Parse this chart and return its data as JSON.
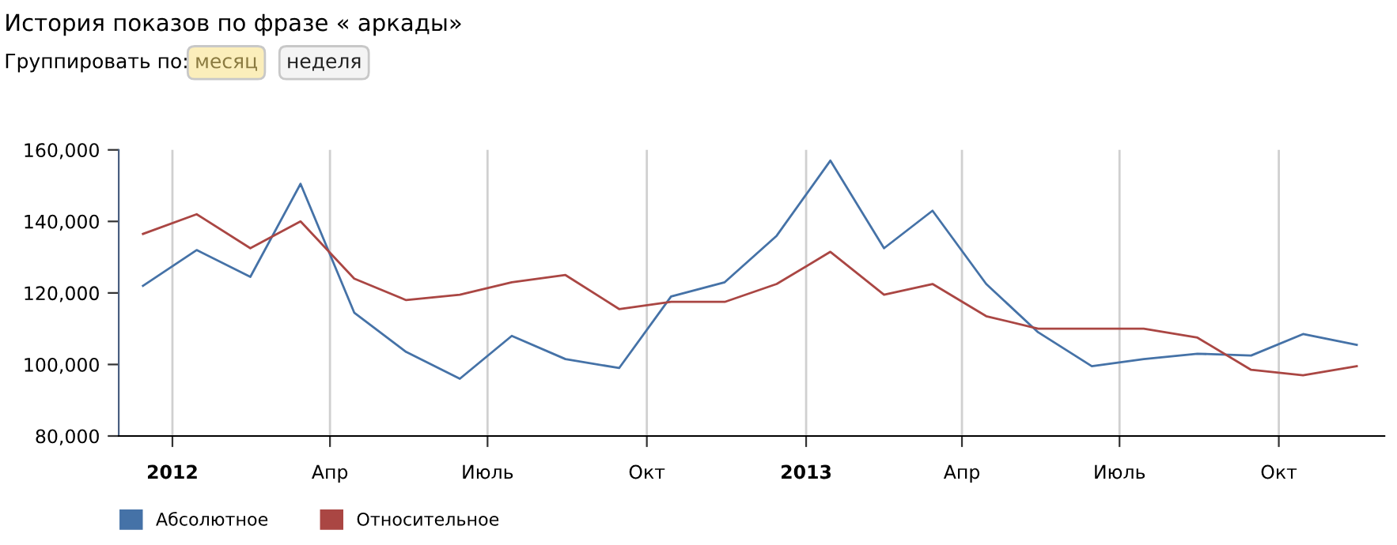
{
  "chart_data": {
    "type": "line",
    "title": "История показов по фразе « аркады»",
    "annotations": [
      "Группировать по:",
      "месяц",
      "неделя"
    ],
    "x": [
      "2011-12-15",
      "2012-01-15",
      "2012-02-15",
      "2012-03-15",
      "2012-04-15",
      "2012-05-15",
      "2012-06-15",
      "2012-07-15",
      "2012-08-15",
      "2012-09-15",
      "2012-10-15",
      "2012-11-15",
      "2012-12-15",
      "2013-01-15",
      "2013-02-15",
      "2013-03-15",
      "2013-04-15",
      "2013-05-15",
      "2013-06-15",
      "2013-07-15",
      "2013-08-15",
      "2013-09-15",
      "2013-10-15",
      "2013-11-15"
    ],
    "series": [
      {
        "name": "Абсолютное",
        "color": "#4572a7",
        "values": [
          122000,
          132000,
          124500,
          150500,
          114500,
          103500,
          96000,
          108000,
          101500,
          99000,
          119000,
          123000,
          136000,
          157000,
          132500,
          143000,
          122500,
          109000,
          99500,
          101500,
          103000,
          102500,
          108500,
          105500
        ]
      },
      {
        "name": "Относительное",
        "color": "#aa4643",
        "values": [
          136500,
          142000,
          132500,
          140000,
          124000,
          118000,
          119500,
          123000,
          125000,
          115500,
          117500,
          117500,
          122500,
          131500,
          119500,
          122500,
          113500,
          110000,
          110000,
          110000,
          107500,
          98500,
          97000,
          99500
        ]
      }
    ],
    "xlim": [
      "2011-12-01",
      "2013-12-01"
    ],
    "xticks": [
      {
        "value": "2012-01-01",
        "label": "2012"
      },
      {
        "value": "2012-04-01",
        "label": "Апр"
      },
      {
        "value": "2012-07-01",
        "label": "Июль"
      },
      {
        "value": "2012-10-01",
        "label": "Окт"
      },
      {
        "value": "2013-01-01",
        "label": "2013"
      },
      {
        "value": "2013-04-01",
        "label": "Апр"
      },
      {
        "value": "2013-07-01",
        "label": "Июль"
      },
      {
        "value": "2013-10-01",
        "label": "Окт"
      }
    ],
    "ylim": [
      80000,
      160000
    ],
    "yticks": [
      {
        "value": 80000,
        "label": "80,000"
      },
      {
        "value": 100000,
        "label": "100,000"
      },
      {
        "value": 120000,
        "label": "120,000"
      },
      {
        "value": 140000,
        "label": "140,000"
      },
      {
        "value": 160000,
        "label": "160,000"
      }
    ],
    "grid": "x",
    "legend": "bottom",
    "marker": "none",
    "line_style": "solid"
  }
}
